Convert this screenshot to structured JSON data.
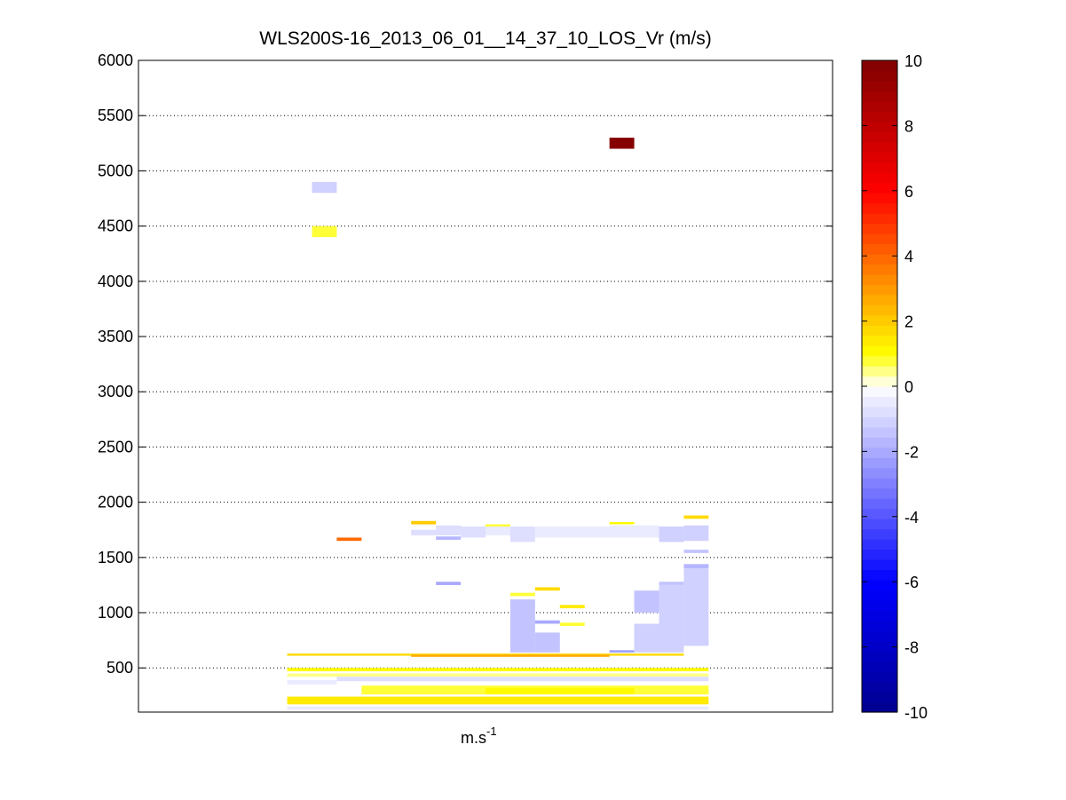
{
  "chart_data": {
    "type": "heatmap",
    "title": "WLS200S-16_2013_06_01__14_37_10_LOS_Vr (m/s)",
    "xlabel": "m.s",
    "xlabel_superscript": "-1",
    "ylabel": "",
    "ylim": [
      100,
      6000
    ],
    "yticks": [
      500,
      1000,
      1500,
      2000,
      2500,
      3000,
      3500,
      4000,
      4500,
      5000,
      5500,
      6000
    ],
    "xlim": [
      0,
      28
    ],
    "grid": true,
    "colorbar": {
      "label_values": [
        -10,
        -8,
        -6,
        -4,
        -2,
        0,
        2,
        4,
        6,
        8,
        10
      ],
      "range": [
        -10,
        10
      ],
      "levels": 64,
      "stops": [
        {
          "v": -10,
          "color": "#00008f"
        },
        {
          "v": -6,
          "color": "#0000ff"
        },
        {
          "v": 0,
          "color": "#ffffff"
        },
        {
          "v": 1,
          "color": "#ffff00"
        },
        {
          "v": 6,
          "color": "#ff0000"
        },
        {
          "v": 10,
          "color": "#800000"
        }
      ]
    },
    "cells": [
      {
        "x0": 7,
        "x1": 8,
        "y0": 4800,
        "y1": 4900,
        "v": -1.2
      },
      {
        "x0": 7,
        "x1": 8,
        "y0": 4400,
        "y1": 4500,
        "v": 0.9
      },
      {
        "x0": 19,
        "x1": 20,
        "y0": 5200,
        "y1": 5300,
        "v": 9.8
      },
      {
        "x0": 8,
        "x1": 9,
        "y0": 1650,
        "y1": 1680,
        "v": 3.8
      },
      {
        "x0": 11,
        "x1": 12,
        "y0": 1800,
        "y1": 1830,
        "v": 2.0
      },
      {
        "x0": 11,
        "x1": 12,
        "y0": 1700,
        "y1": 1750,
        "v": -0.8
      },
      {
        "x0": 12,
        "x1": 13,
        "y0": 1700,
        "y1": 1790,
        "v": -0.8
      },
      {
        "x0": 12,
        "x1": 13,
        "y0": 1660,
        "y1": 1690,
        "v": -1.6
      },
      {
        "x0": 13,
        "x1": 14,
        "y0": 1680,
        "y1": 1780,
        "v": -0.9
      },
      {
        "x0": 14,
        "x1": 15,
        "y0": 1780,
        "y1": 1800,
        "v": 0.8
      },
      {
        "x0": 14,
        "x1": 15,
        "y0": 1700,
        "y1": 1780,
        "v": -0.5
      },
      {
        "x0": 15,
        "x1": 16,
        "y0": 1640,
        "y1": 1780,
        "v": -0.7
      },
      {
        "x0": 16,
        "x1": 19,
        "y0": 1680,
        "y1": 1780,
        "v": -0.6
      },
      {
        "x0": 19,
        "x1": 20,
        "y0": 1800,
        "y1": 1820,
        "v": 1.0
      },
      {
        "x0": 19,
        "x1": 21,
        "y0": 1680,
        "y1": 1790,
        "v": -0.6
      },
      {
        "x0": 21,
        "x1": 22,
        "y0": 1640,
        "y1": 1780,
        "v": -1.0
      },
      {
        "x0": 22,
        "x1": 23,
        "y0": 1850,
        "y1": 1880,
        "v": 1.6
      },
      {
        "x0": 22,
        "x1": 23,
        "y0": 1650,
        "y1": 1790,
        "v": -1.0
      },
      {
        "x0": 22,
        "x1": 23,
        "y0": 1540,
        "y1": 1570,
        "v": -1.5
      },
      {
        "x0": 12,
        "x1": 13,
        "y0": 1250,
        "y1": 1280,
        "v": -2.0
      },
      {
        "x0": 15,
        "x1": 16,
        "y0": 1150,
        "y1": 1180,
        "v": 0.9
      },
      {
        "x0": 15,
        "x1": 16,
        "y0": 640,
        "y1": 1120,
        "v": -1.4
      },
      {
        "x0": 16,
        "x1": 17,
        "y0": 1200,
        "y1": 1230,
        "v": 1.6
      },
      {
        "x0": 16,
        "x1": 17,
        "y0": 900,
        "y1": 930,
        "v": -2.0
      },
      {
        "x0": 16,
        "x1": 17,
        "y0": 640,
        "y1": 820,
        "v": -1.5
      },
      {
        "x0": 17,
        "x1": 18,
        "y0": 1040,
        "y1": 1070,
        "v": 1.4
      },
      {
        "x0": 17,
        "x1": 18,
        "y0": 880,
        "y1": 910,
        "v": 0.9
      },
      {
        "x0": 19,
        "x1": 20,
        "y0": 640,
        "y1": 660,
        "v": -2.2
      },
      {
        "x0": 20,
        "x1": 21,
        "y0": 1000,
        "y1": 1200,
        "v": -1.3
      },
      {
        "x0": 20,
        "x1": 21,
        "y0": 640,
        "y1": 900,
        "v": -1.2
      },
      {
        "x0": 21,
        "x1": 22,
        "y0": 1250,
        "y1": 1280,
        "v": -1.5
      },
      {
        "x0": 21,
        "x1": 22,
        "y0": 640,
        "y1": 1250,
        "v": -1.1
      },
      {
        "x0": 22,
        "x1": 23,
        "y0": 1400,
        "y1": 1440,
        "v": -1.7
      },
      {
        "x0": 22,
        "x1": 23,
        "y0": 700,
        "y1": 1400,
        "v": -1.0
      },
      {
        "x0": 6,
        "x1": 22,
        "y0": 610,
        "y1": 630,
        "v": 1.8
      },
      {
        "x0": 11,
        "x1": 19,
        "y0": 600,
        "y1": 620,
        "v": 2.6
      },
      {
        "x0": 6,
        "x1": 23,
        "y0": 470,
        "y1": 500,
        "v": 1.2
      },
      {
        "x0": 6,
        "x1": 23,
        "y0": 420,
        "y1": 450,
        "v": 0.5
      },
      {
        "x0": 6,
        "x1": 8,
        "y0": 350,
        "y1": 390,
        "v": -0.5
      },
      {
        "x0": 8,
        "x1": 23,
        "y0": 380,
        "y1": 420,
        "v": -0.9
      },
      {
        "x0": 9,
        "x1": 23,
        "y0": 260,
        "y1": 340,
        "v": 0.7
      },
      {
        "x0": 14,
        "x1": 20,
        "y0": 260,
        "y1": 320,
        "v": 1.1
      },
      {
        "x0": 6,
        "x1": 23,
        "y0": 170,
        "y1": 240,
        "v": 1.3
      },
      {
        "x0": 6,
        "x1": 23,
        "y0": 120,
        "y1": 150,
        "v": -0.6
      }
    ]
  }
}
